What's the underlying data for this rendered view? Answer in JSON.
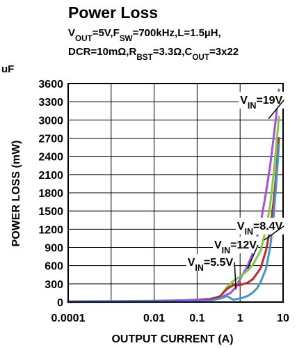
{
  "chart_data": {
    "type": "line",
    "title": "Power Loss",
    "subtitle_line1": [
      {
        "t": "V"
      },
      {
        "t": "OUT",
        "sub": true
      },
      {
        "t": "=5V,F"
      },
      {
        "t": "SW",
        "sub": true
      },
      {
        "t": "=700kHz,L=1.5µH,"
      }
    ],
    "subtitle_line2": [
      {
        "t": "DCR=10mΩ,R"
      },
      {
        "t": "BST",
        "sub": true
      },
      {
        "t": "=3.3Ω,C"
      },
      {
        "t": "OUT",
        "sub": true
      },
      {
        "t": "=3x22"
      }
    ],
    "subtitle_overflow": "uF",
    "xlabel": "OUTPUT CURRENT (A)",
    "ylabel": "POWER LOSS (mW)",
    "x_scale": "log",
    "xlim": [
      0.0001,
      10
    ],
    "ylim": [
      0,
      3600
    ],
    "x_ticks": [
      0.0001,
      0.01,
      0.1,
      1,
      10
    ],
    "x_tick_labels": [
      "0.0001",
      "0.01",
      "0.1",
      "1",
      "10"
    ],
    "x_grid": [
      0.001,
      0.01,
      0.1,
      1
    ],
    "y_ticks": [
      0,
      300,
      600,
      900,
      1200,
      1500,
      1800,
      2100,
      2400,
      2700,
      3000,
      3300,
      3600
    ],
    "y_tick_labels": [
      "0",
      "300",
      "600",
      "900",
      "1200",
      "1500",
      "1800",
      "2100",
      "2400",
      "2700",
      "3000",
      "3300",
      "3600"
    ],
    "grid": true,
    "series": [
      {
        "name": "VIN=19V",
        "label_parts": [
          {
            "t": "V"
          },
          {
            "t": "IN",
            "sub": true
          },
          {
            "t": "=19V"
          }
        ],
        "color": "#a64dea",
        "x": [
          0.0001,
          0.001,
          0.01,
          0.05,
          0.1,
          0.2,
          0.4,
          0.6,
          0.8,
          1,
          1.5,
          2,
          3,
          4,
          5,
          6,
          7,
          8
        ],
        "y": [
          12,
          15,
          20,
          30,
          40,
          55,
          90,
          150,
          250,
          380,
          600,
          820,
          1300,
          1800,
          2250,
          2700,
          3100,
          3500
        ],
        "label_pos": [
          1.0,
          3270
        ],
        "leader_to": [
          4.6,
          3020
        ]
      },
      {
        "name": "VIN=8.4V",
        "label_parts": [
          {
            "t": "V"
          },
          {
            "t": "IN",
            "sub": true
          },
          {
            "t": "=8.4V"
          }
        ],
        "color": "#7fcd3c",
        "x": [
          0.0001,
          0.01,
          0.1,
          0.2,
          0.35,
          0.5,
          0.7,
          1,
          1.5,
          2,
          3,
          4,
          5,
          6,
          7,
          8
        ],
        "y": [
          5,
          8,
          15,
          40,
          100,
          250,
          350,
          420,
          520,
          620,
          850,
          1200,
          1600,
          2100,
          2600,
          3050
        ],
        "label_pos": [
          0.85,
          1195
        ],
        "leader_to": [
          3.6,
          1020
        ]
      },
      {
        "name": "VIN=12V",
        "label_parts": [
          {
            "t": "V"
          },
          {
            "t": "IN",
            "sub": true
          },
          {
            "t": "=12V"
          }
        ],
        "color": "#c0282d",
        "x": [
          0.0001,
          0.01,
          0.1,
          0.2,
          0.35,
          0.5,
          0.7,
          1,
          1.5,
          2,
          3,
          4,
          5,
          6,
          7,
          8
        ],
        "y": [
          5,
          8,
          15,
          40,
          100,
          220,
          280,
          280,
          320,
          380,
          560,
          850,
          1200,
          1650,
          2150,
          2700
        ],
        "label_pos": [
          0.25,
          885
        ],
        "leader_to": [
          1.5,
          550
        ]
      },
      {
        "name": "VIN=5.5V",
        "label_parts": [
          {
            "t": "V"
          },
          {
            "t": "IN",
            "sub": true
          },
          {
            "t": "=5.5V"
          }
        ],
        "color": "#3f95d6",
        "x": [
          0.0001,
          0.01,
          0.1,
          0.2,
          0.35,
          0.5,
          0.6,
          0.7,
          1,
          1.5,
          2,
          2.5,
          3,
          4,
          5,
          6,
          7,
          8
        ],
        "y": [
          3,
          5,
          10,
          25,
          60,
          100,
          60,
          40,
          60,
          100,
          160,
          230,
          330,
          550,
          900,
          1400,
          2000,
          2600
        ],
        "label_pos": [
          0.06,
          595
        ],
        "leader_to": [
          0.8,
          210
        ]
      }
    ]
  }
}
